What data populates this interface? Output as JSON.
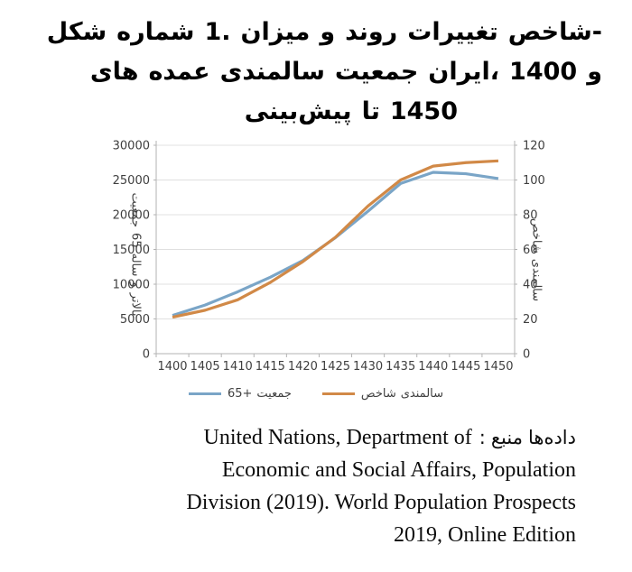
{
  "title": {
    "full_text": "شکل شماره 1. میزان و روند تغییرات شاخص‌های عمده سالمندی جمعیت ایران، 1400 و پیش‌بینی تا 1450",
    "lines": [
      [
        "شکل",
        "شماره",
        "1.",
        "میزان",
        "و",
        "روند",
        "تغییرات",
        "‎شاخص-"
      ],
      [
        "های",
        "عمده",
        "سالمندی",
        "جمعیت",
        "‎ایران،",
        "1400",
        "و"
      ],
      [
        "پیش‌بینی",
        "تا",
        "1450"
      ]
    ]
  },
  "chart_data": {
    "type": "line",
    "x": [
      1400,
      1405,
      1410,
      1415,
      1420,
      1425,
      1430,
      1435,
      1440,
      1445,
      1450
    ],
    "series": [
      {
        "name": "جمعیت +65",
        "axis": "left",
        "color": "#7aa5c7",
        "values": [
          5500,
          7000,
          8900,
          11000,
          13400,
          16700,
          20500,
          24500,
          26100,
          25900,
          25200
        ]
      },
      {
        "name": "شاخص سالمندی",
        "axis": "right",
        "color": "#d18947",
        "values": [
          21,
          25,
          31,
          41,
          53,
          67,
          85,
          100,
          108,
          110,
          111
        ]
      }
    ],
    "left_axis": {
      "title": "جمعیت 65 ساله و بالاتر",
      "title_tokens": [
        "جمعیت",
        "65",
        "ساله",
        "و",
        "بالاتر"
      ],
      "min": 0,
      "max": 30000,
      "step": 5000,
      "ticks": [
        0,
        5000,
        10000,
        15000,
        20000,
        25000,
        30000
      ]
    },
    "right_axis": {
      "title": "شاخص سالمندی",
      "title_tokens": [
        "شاخص",
        "سالمندی"
      ],
      "min": 0,
      "max": 120,
      "step": 20,
      "ticks": [
        0,
        20,
        40,
        60,
        80,
        100,
        120
      ]
    },
    "grid": true,
    "legend_position": "bottom"
  },
  "legend": {
    "items": [
      {
        "name": "جمعیت +65",
        "tokens": [
          "65+",
          "جمعیت"
        ],
        "color": "#7aa5c7"
      },
      {
        "name": "شاخص سالمندی",
        "tokens": [
          "شاخص",
          "سالمندی"
        ],
        "color": "#d18947"
      }
    ]
  },
  "source": {
    "label": "منبع داده‌ها:",
    "label_tokens": [
      ":",
      "منبع",
      "داده‌ها"
    ],
    "lines": [
      "United Nations, Department of",
      "Economic and Social Affairs, Population",
      "Division (2019). World Population Prospects",
      "2019, Online Edition"
    ]
  },
  "colors": {
    "series_population": "#7aa5c7",
    "series_index": "#d18947",
    "gridline": "#e0e0e0",
    "axis_line": "#b3b3b3",
    "tick_text": "#3f3f3f"
  }
}
